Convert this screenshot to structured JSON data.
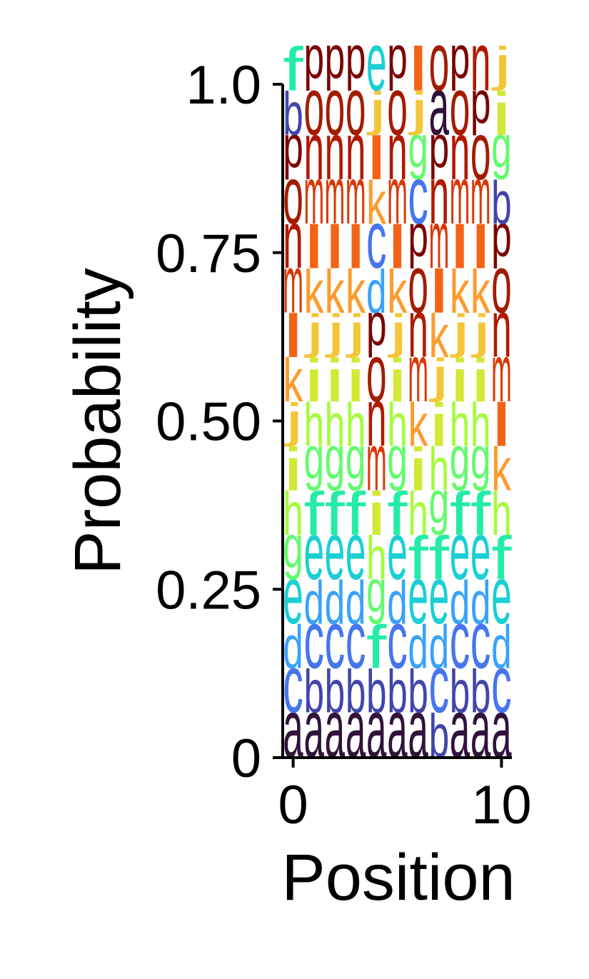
{
  "chart_data": {
    "type": "sequence-logo",
    "title": "",
    "xlabel": "Position",
    "ylabel": "Probability",
    "xlim": [
      -0.5,
      10.5
    ],
    "ylim": [
      0,
      1
    ],
    "xticks": [
      0,
      10
    ],
    "xtick_labels": [
      "0",
      "10"
    ],
    "yticks": [
      0,
      0.25,
      0.5,
      0.75,
      1.0
    ],
    "ytick_labels": [
      "0",
      "0.25",
      "0.50",
      "0.75",
      "1.0"
    ],
    "grid": false,
    "legend": "none",
    "letter_colors": {
      "a": "#30123b",
      "b": "#4145ab",
      "c": "#4675ed",
      "d": "#39a2fc",
      "e": "#1bcfd4",
      "f": "#24eca6",
      "g": "#61fc6c",
      "h": "#a4fc3b",
      "i": "#d1e834",
      "j": "#f3c63a",
      "k": "#fe9b2d",
      "l": "#f36315",
      "m": "#d93806",
      "n": "#b11901",
      "o": "#a31c00",
      "p": "#7a0403"
    },
    "positions": [
      {
        "x": 0,
        "letters": [
          [
            "a",
            0.066
          ],
          [
            "c",
            0.066
          ],
          [
            "d",
            0.066
          ],
          [
            "e",
            0.066
          ],
          [
            "g",
            0.066
          ],
          [
            "h",
            0.066
          ],
          [
            "i",
            0.066
          ],
          [
            "j",
            0.066
          ],
          [
            "k",
            0.066
          ],
          [
            "l",
            0.066
          ],
          [
            "m",
            0.066
          ],
          [
            "n",
            0.066
          ],
          [
            "o",
            0.066
          ],
          [
            "p",
            0.066
          ],
          [
            "b",
            0.066
          ],
          [
            "f",
            0.067
          ]
        ]
      },
      {
        "x": 1,
        "letters": [
          [
            "a",
            0.066
          ],
          [
            "b",
            0.066
          ],
          [
            "c",
            0.066
          ],
          [
            "d",
            0.066
          ],
          [
            "e",
            0.066
          ],
          [
            "f",
            0.066
          ],
          [
            "g",
            0.066
          ],
          [
            "h",
            0.066
          ],
          [
            "i",
            0.066
          ],
          [
            "j",
            0.066
          ],
          [
            "k",
            0.066
          ],
          [
            "l",
            0.066
          ],
          [
            "m",
            0.066
          ],
          [
            "n",
            0.066
          ],
          [
            "o",
            0.066
          ],
          [
            "p",
            0.067
          ]
        ]
      },
      {
        "x": 2,
        "letters": [
          [
            "a",
            0.066
          ],
          [
            "b",
            0.066
          ],
          [
            "c",
            0.066
          ],
          [
            "d",
            0.066
          ],
          [
            "e",
            0.066
          ],
          [
            "f",
            0.066
          ],
          [
            "g",
            0.066
          ],
          [
            "h",
            0.066
          ],
          [
            "i",
            0.066
          ],
          [
            "j",
            0.066
          ],
          [
            "k",
            0.066
          ],
          [
            "l",
            0.066
          ],
          [
            "m",
            0.066
          ],
          [
            "n",
            0.066
          ],
          [
            "o",
            0.066
          ],
          [
            "p",
            0.067
          ]
        ]
      },
      {
        "x": 3,
        "letters": [
          [
            "a",
            0.066
          ],
          [
            "b",
            0.066
          ],
          [
            "c",
            0.066
          ],
          [
            "d",
            0.066
          ],
          [
            "e",
            0.066
          ],
          [
            "f",
            0.066
          ],
          [
            "g",
            0.066
          ],
          [
            "h",
            0.066
          ],
          [
            "i",
            0.066
          ],
          [
            "j",
            0.066
          ],
          [
            "k",
            0.066
          ],
          [
            "l",
            0.066
          ],
          [
            "m",
            0.066
          ],
          [
            "n",
            0.066
          ],
          [
            "o",
            0.066
          ],
          [
            "p",
            0.067
          ]
        ]
      },
      {
        "x": 4,
        "letters": [
          [
            "a",
            0.066
          ],
          [
            "b",
            0.066
          ],
          [
            "f",
            0.066
          ],
          [
            "g",
            0.066
          ],
          [
            "h",
            0.066
          ],
          [
            "i",
            0.066
          ],
          [
            "m",
            0.066
          ],
          [
            "n",
            0.066
          ],
          [
            "o",
            0.066
          ],
          [
            "p",
            0.066
          ],
          [
            "d",
            0.066
          ],
          [
            "c",
            0.066
          ],
          [
            "k",
            0.066
          ],
          [
            "l",
            0.066
          ],
          [
            "j",
            0.066
          ],
          [
            "e",
            0.067
          ]
        ]
      },
      {
        "x": 5,
        "letters": [
          [
            "a",
            0.066
          ],
          [
            "b",
            0.066
          ],
          [
            "c",
            0.066
          ],
          [
            "d",
            0.066
          ],
          [
            "e",
            0.066
          ],
          [
            "f",
            0.066
          ],
          [
            "g",
            0.066
          ],
          [
            "h",
            0.066
          ],
          [
            "i",
            0.066
          ],
          [
            "j",
            0.066
          ],
          [
            "k",
            0.066
          ],
          [
            "l",
            0.066
          ],
          [
            "m",
            0.066
          ],
          [
            "n",
            0.066
          ],
          [
            "o",
            0.066
          ],
          [
            "p",
            0.067
          ]
        ]
      },
      {
        "x": 6,
        "letters": [
          [
            "a",
            0.066
          ],
          [
            "b",
            0.066
          ],
          [
            "d",
            0.066
          ],
          [
            "e",
            0.066
          ],
          [
            "f",
            0.066
          ],
          [
            "h",
            0.066
          ],
          [
            "i",
            0.066
          ],
          [
            "k",
            0.066
          ],
          [
            "m",
            0.066
          ],
          [
            "n",
            0.066
          ],
          [
            "o",
            0.066
          ],
          [
            "p",
            0.066
          ],
          [
            "c",
            0.066
          ],
          [
            "g",
            0.066
          ],
          [
            "j",
            0.066
          ],
          [
            "l",
            0.067
          ]
        ]
      },
      {
        "x": 7,
        "letters": [
          [
            "b",
            0.066
          ],
          [
            "c",
            0.066
          ],
          [
            "d",
            0.066
          ],
          [
            "e",
            0.066
          ],
          [
            "f",
            0.066
          ],
          [
            "g",
            0.066
          ],
          [
            "h",
            0.066
          ],
          [
            "i",
            0.066
          ],
          [
            "j",
            0.066
          ],
          [
            "k",
            0.066
          ],
          [
            "l",
            0.066
          ],
          [
            "m",
            0.066
          ],
          [
            "n",
            0.066
          ],
          [
            "p",
            0.066
          ],
          [
            "a",
            0.066
          ],
          [
            "o",
            0.067
          ]
        ]
      },
      {
        "x": 8,
        "letters": [
          [
            "a",
            0.066
          ],
          [
            "b",
            0.066
          ],
          [
            "c",
            0.066
          ],
          [
            "d",
            0.066
          ],
          [
            "e",
            0.066
          ],
          [
            "f",
            0.066
          ],
          [
            "g",
            0.066
          ],
          [
            "h",
            0.066
          ],
          [
            "i",
            0.066
          ],
          [
            "j",
            0.066
          ],
          [
            "k",
            0.066
          ],
          [
            "l",
            0.066
          ],
          [
            "m",
            0.066
          ],
          [
            "n",
            0.066
          ],
          [
            "o",
            0.066
          ],
          [
            "p",
            0.067
          ]
        ]
      },
      {
        "x": 9,
        "letters": [
          [
            "a",
            0.066
          ],
          [
            "b",
            0.066
          ],
          [
            "c",
            0.066
          ],
          [
            "d",
            0.066
          ],
          [
            "e",
            0.066
          ],
          [
            "f",
            0.066
          ],
          [
            "g",
            0.066
          ],
          [
            "h",
            0.066
          ],
          [
            "i",
            0.066
          ],
          [
            "j",
            0.066
          ],
          [
            "k",
            0.066
          ],
          [
            "l",
            0.066
          ],
          [
            "m",
            0.066
          ],
          [
            "o",
            0.066
          ],
          [
            "p",
            0.066
          ],
          [
            "n",
            0.067
          ]
        ]
      },
      {
        "x": 10,
        "letters": [
          [
            "a",
            0.066
          ],
          [
            "c",
            0.066
          ],
          [
            "d",
            0.066
          ],
          [
            "e",
            0.066
          ],
          [
            "f",
            0.066
          ],
          [
            "h",
            0.066
          ],
          [
            "k",
            0.066
          ],
          [
            "l",
            0.066
          ],
          [
            "m",
            0.066
          ],
          [
            "n",
            0.066
          ],
          [
            "o",
            0.066
          ],
          [
            "p",
            0.066
          ],
          [
            "b",
            0.066
          ],
          [
            "g",
            0.066
          ],
          [
            "i",
            0.066
          ],
          [
            "j",
            0.067
          ]
        ]
      }
    ]
  }
}
